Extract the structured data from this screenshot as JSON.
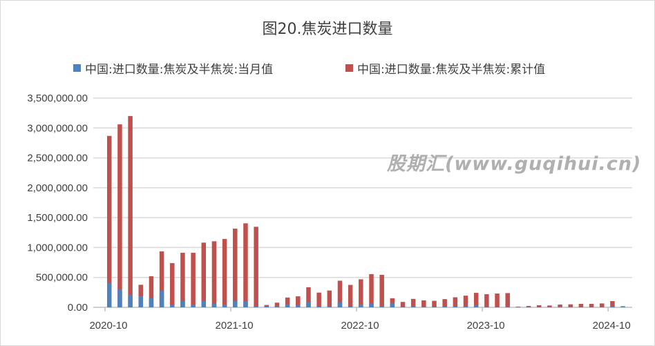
{
  "chart_data": {
    "type": "bar",
    "title": "图20.焦炭进口数量",
    "xlabel": "",
    "ylabel": "",
    "ylim": [
      0,
      3500000
    ],
    "yticks": [
      "0.00",
      "500,000.00",
      "1,000,000.00",
      "1,500,000.00",
      "2,000,000.00",
      "2,500,000.00",
      "3,000,000.00",
      "3,500,000.00"
    ],
    "ytick_values": [
      0,
      500000,
      1000000,
      1500000,
      2000000,
      2500000,
      3000000,
      3500000
    ],
    "xtick_labels": [
      "2020-10",
      "2021-10",
      "2022-10",
      "2023-10",
      "2024-10"
    ],
    "xtick_index": [
      0,
      12,
      24,
      36,
      48
    ],
    "grid": true,
    "legend_position": "top",
    "categories": [
      "2020-10",
      "2020-11",
      "2020-12",
      "2021-01",
      "2021-02",
      "2021-03",
      "2021-04",
      "2021-05",
      "2021-06",
      "2021-07",
      "2021-08",
      "2021-09",
      "2021-10",
      "2021-11",
      "2021-12",
      "2022-01",
      "2022-02",
      "2022-03",
      "2022-04",
      "2022-05",
      "2022-06",
      "2022-07",
      "2022-08",
      "2022-09",
      "2022-10",
      "2022-11",
      "2022-12",
      "2023-01",
      "2023-02",
      "2023-03",
      "2023-04",
      "2023-05",
      "2023-06",
      "2023-07",
      "2023-08",
      "2023-09",
      "2023-10",
      "2023-11",
      "2023-12",
      "2024-01",
      "2024-02",
      "2024-03",
      "2024-04",
      "2024-05",
      "2024-06",
      "2024-07",
      "2024-08",
      "2024-09",
      "2024-10",
      "2024-11"
    ],
    "series": [
      {
        "name": "中国:进口数量:焦炭及半焦炭:累计值",
        "color": "#c0504d",
        "values": [
          2867000,
          3060000,
          3199000,
          377000,
          520000,
          935000,
          739000,
          912000,
          912000,
          1082000,
          1105000,
          1143000,
          1316000,
          1405000,
          1347000,
          39000,
          78000,
          164000,
          184000,
          336000,
          246000,
          281000,
          445000,
          375000,
          469000,
          555000,
          543000,
          152000,
          90000,
          141000,
          117000,
          109000,
          137000,
          168000,
          195000,
          242000,
          219000,
          231000,
          238000,
          12000,
          23000,
          35000,
          31000,
          46000,
          50000,
          58000,
          58000,
          65000,
          104000,
          null
        ]
      },
      {
        "name": "中国:进口数量:焦炭及半焦炭:当月值",
        "color": "#4f81bd",
        "values": [
          412000,
          304000,
          211000,
          188000,
          154000,
          281000,
          38000,
          104000,
          46000,
          108000,
          61000,
          46000,
          108000,
          100000,
          20000,
          20000,
          23000,
          51000,
          31000,
          86000,
          12000,
          16000,
          86000,
          12000,
          47000,
          62000,
          20000,
          70000,
          8000,
          23000,
          8000,
          8000,
          12000,
          23000,
          19000,
          31000,
          6000,
          5000,
          5000,
          5000,
          5000,
          5000,
          5000,
          5000,
          5000,
          5000,
          5000,
          5000,
          19000,
          19000
        ]
      }
    ]
  },
  "watermark": "股期汇(www.guqihui.cn)"
}
